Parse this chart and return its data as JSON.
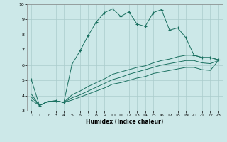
{
  "xlabel": "Humidex (Indice chaleur)",
  "ylabel": "",
  "background_color": "#cce8e8",
  "grid_color": "#aacccc",
  "line_color": "#1a7060",
  "xlim": [
    -0.5,
    23.5
  ],
  "ylim": [
    3,
    10
  ],
  "xticks": [
    0,
    1,
    2,
    3,
    4,
    5,
    6,
    7,
    8,
    9,
    10,
    11,
    12,
    13,
    14,
    15,
    16,
    17,
    18,
    19,
    20,
    21,
    22,
    23
  ],
  "yticks": [
    3,
    4,
    5,
    6,
    7,
    8,
    9,
    10
  ],
  "series1_x": [
    0,
    1,
    2,
    3,
    4,
    5,
    6,
    7,
    8,
    9,
    10,
    11,
    12,
    13,
    14,
    15,
    16,
    17,
    18,
    19,
    20,
    21,
    22,
    23
  ],
  "series1_y": [
    5.05,
    3.35,
    3.6,
    3.65,
    3.55,
    6.05,
    6.95,
    7.95,
    8.85,
    9.45,
    9.7,
    9.2,
    9.5,
    8.7,
    8.55,
    9.45,
    9.65,
    8.3,
    8.45,
    7.8,
    6.65,
    6.5,
    6.5,
    6.35
  ],
  "series2_x": [
    0,
    1,
    2,
    3,
    4,
    5,
    6,
    7,
    8,
    9,
    10,
    11,
    12,
    13,
    14,
    15,
    16,
    17,
    18,
    19,
    20,
    21,
    22,
    23
  ],
  "series2_y": [
    4.1,
    3.35,
    3.6,
    3.65,
    3.55,
    4.05,
    4.3,
    4.6,
    4.85,
    5.1,
    5.4,
    5.55,
    5.7,
    5.85,
    5.95,
    6.15,
    6.3,
    6.4,
    6.55,
    6.65,
    6.65,
    6.5,
    6.5,
    6.35
  ],
  "series3_x": [
    0,
    1,
    2,
    3,
    4,
    5,
    6,
    7,
    8,
    9,
    10,
    11,
    12,
    13,
    14,
    15,
    16,
    17,
    18,
    19,
    20,
    21,
    22,
    23
  ],
  "series3_y": [
    3.9,
    3.35,
    3.6,
    3.65,
    3.55,
    3.85,
    4.05,
    4.3,
    4.55,
    4.8,
    5.05,
    5.2,
    5.4,
    5.55,
    5.7,
    5.85,
    6.0,
    6.1,
    6.2,
    6.3,
    6.3,
    6.15,
    6.1,
    6.3
  ],
  "series4_x": [
    0,
    1,
    2,
    3,
    4,
    5,
    6,
    7,
    8,
    9,
    10,
    11,
    12,
    13,
    14,
    15,
    16,
    17,
    18,
    19,
    20,
    21,
    22,
    23
  ],
  "series4_y": [
    3.7,
    3.35,
    3.6,
    3.65,
    3.55,
    3.7,
    3.9,
    4.1,
    4.3,
    4.5,
    4.75,
    4.85,
    5.0,
    5.15,
    5.25,
    5.45,
    5.55,
    5.65,
    5.75,
    5.85,
    5.85,
    5.7,
    5.65,
    6.3
  ]
}
